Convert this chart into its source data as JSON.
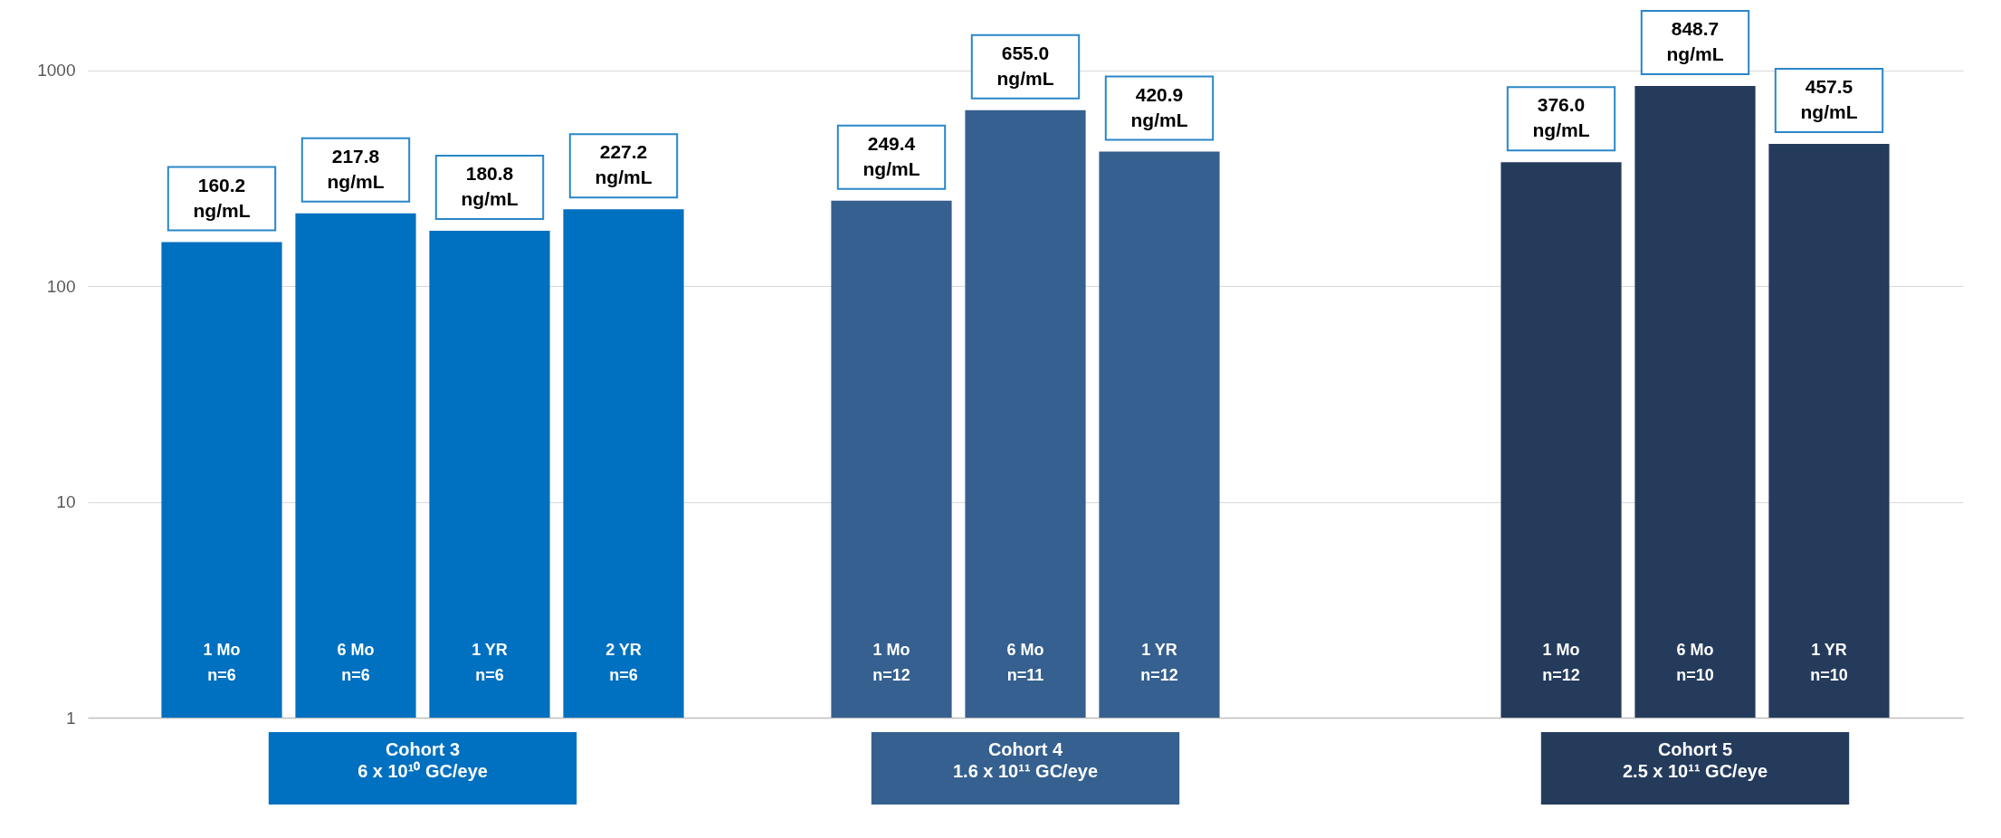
{
  "chart_data": {
    "type": "bar",
    "log": true,
    "grid": "y",
    "ylim": [
      1,
      1500
    ],
    "yticks": [
      1,
      10,
      100,
      1000
    ],
    "categories": [
      "1 Mo\nn=6",
      "6 Mo\nn=6",
      "1 YR\nn=6",
      "2 YR\nn=6",
      null,
      "1 Mo\nn=12",
      "6 Mo\nn=11",
      "1 YR\nn=12",
      null,
      null,
      "1 Mo\nn=12",
      "6 Mo\nn=10",
      "1 YR\nn=10"
    ],
    "series": [
      {
        "name": "Cohort 3\n6 x 10¹⁰ GC/eye",
        "color": "#0070c0",
        "values": [
          160.2,
          217.8,
          180.8,
          227.2,
          null,
          null,
          null,
          null,
          null,
          null,
          null,
          null,
          null
        ],
        "value_labels": [
          "160.2\nng/mL",
          "217.8\nng/mL",
          "180.8\nng/mL",
          "227.2\nng/mL",
          null,
          null,
          null,
          null,
          null,
          null,
          null,
          null,
          null
        ]
      },
      {
        "name": "Cohort 4\n1.6 x 10¹¹ GC/eye",
        "color": "#35608f",
        "values": [
          null,
          null,
          null,
          null,
          null,
          249.4,
          655.0,
          420.9,
          null,
          null,
          null,
          null,
          null
        ],
        "value_labels": [
          null,
          null,
          null,
          null,
          null,
          "249.4\nng/mL",
          "655.0\nng/mL",
          "420.9\nng/mL",
          null,
          null,
          null,
          null,
          null
        ]
      },
      {
        "name": "Cohort 5\n2.5 x 10¹¹ GC/eye",
        "color": "#243b5c",
        "values": [
          null,
          null,
          null,
          null,
          null,
          null,
          null,
          null,
          null,
          null,
          376.0,
          848.7,
          457.5
        ],
        "value_labels": [
          null,
          null,
          null,
          null,
          null,
          null,
          null,
          null,
          null,
          null,
          "376.0\nng/mL",
          "848.7\nng/mL",
          "457.5\nng/mL"
        ]
      }
    ]
  }
}
